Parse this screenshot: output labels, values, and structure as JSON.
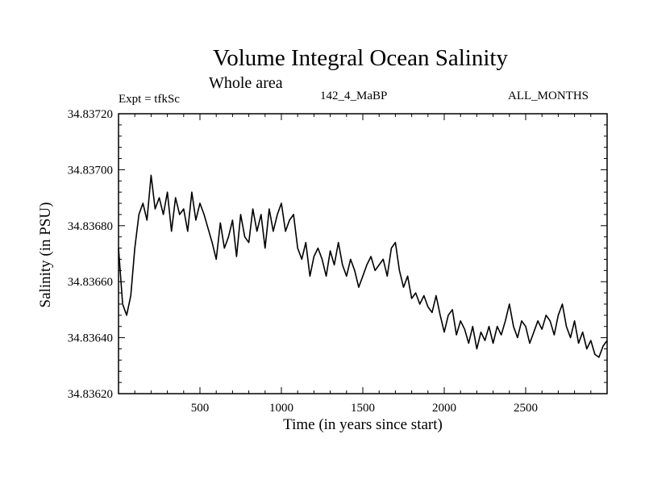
{
  "chart_data": {
    "type": "line",
    "title": "Volume Integral Ocean Salinity",
    "subtitle": "Whole area",
    "experiment": "Expt = tfkSc",
    "run_label": "142_4_MaBP",
    "months_label": "ALL_MONTHS",
    "xlabel": "Time (in years since start)",
    "ylabel": "Salinity (in PSU)",
    "xlim": [
      0,
      3000
    ],
    "ylim": [
      34.8362,
      34.8372
    ],
    "x_ticks": [
      500,
      1000,
      1500,
      2000,
      2500
    ],
    "y_ticks": [
      34.8362,
      34.8364,
      34.8366,
      34.8368,
      34.837,
      34.8372
    ],
    "x_tick_labels": [
      "500",
      "1000",
      "1500",
      "2000",
      "2500"
    ],
    "y_tick_labels": [
      "34.83620",
      "34.83640",
      "34.83660",
      "34.83680",
      "34.83700",
      "34.83720"
    ],
    "grid": false,
    "series": [
      {
        "name": "salinity",
        "x": [
          0,
          25,
          50,
          75,
          100,
          125,
          150,
          175,
          200,
          225,
          250,
          275,
          300,
          325,
          350,
          375,
          400,
          425,
          450,
          475,
          500,
          525,
          550,
          575,
          600,
          625,
          650,
          675,
          700,
          725,
          750,
          775,
          800,
          825,
          850,
          875,
          900,
          925,
          950,
          975,
          1000,
          1025,
          1050,
          1075,
          1100,
          1125,
          1150,
          1175,
          1200,
          1225,
          1250,
          1275,
          1300,
          1325,
          1350,
          1375,
          1400,
          1425,
          1450,
          1475,
          1500,
          1525,
          1550,
          1575,
          1600,
          1625,
          1650,
          1675,
          1700,
          1725,
          1750,
          1775,
          1800,
          1825,
          1850,
          1875,
          1900,
          1925,
          1950,
          1975,
          2000,
          2025,
          2050,
          2075,
          2100,
          2125,
          2150,
          2175,
          2200,
          2225,
          2250,
          2275,
          2300,
          2325,
          2350,
          2375,
          2400,
          2425,
          2450,
          2475,
          2500,
          2525,
          2550,
          2575,
          2600,
          2625,
          2650,
          2675,
          2700,
          2725,
          2750,
          2775,
          2800,
          2825,
          2850,
          2875,
          2900,
          2925,
          2950,
          2975,
          3000
        ],
        "values": [
          34.83672,
          34.83652,
          34.83648,
          34.83655,
          34.83672,
          34.83684,
          34.83688,
          34.83682,
          34.83698,
          34.83686,
          34.8369,
          34.83684,
          34.83692,
          34.83678,
          34.8369,
          34.83684,
          34.83686,
          34.83678,
          34.83692,
          34.83682,
          34.83688,
          34.83684,
          34.83679,
          34.83674,
          34.83668,
          34.83681,
          34.83672,
          34.83676,
          34.83682,
          34.83669,
          34.83684,
          34.83676,
          34.83674,
          34.83686,
          34.83678,
          34.83684,
          34.83672,
          34.83686,
          34.83678,
          34.83684,
          34.83688,
          34.83678,
          34.83682,
          34.83684,
          34.83672,
          34.83668,
          34.83674,
          34.83662,
          34.83669,
          34.83672,
          34.83668,
          34.83662,
          34.83671,
          34.83666,
          34.83674,
          34.83666,
          34.83662,
          34.83668,
          34.83664,
          34.83658,
          34.83662,
          34.83666,
          34.83669,
          34.83664,
          34.83666,
          34.83668,
          34.83662,
          34.83672,
          34.83674,
          34.83664,
          34.83658,
          34.83662,
          34.83654,
          34.83656,
          34.83652,
          34.83655,
          34.83651,
          34.83649,
          34.83655,
          34.83648,
          34.83642,
          34.83648,
          34.8365,
          34.83641,
          34.83646,
          34.83643,
          34.83638,
          34.83644,
          34.83636,
          34.83642,
          34.83639,
          34.83644,
          34.83638,
          34.83644,
          34.83641,
          34.83646,
          34.83652,
          34.83644,
          34.8364,
          34.83646,
          34.83644,
          34.83638,
          34.83642,
          34.83646,
          34.83643,
          34.83648,
          34.83646,
          34.83641,
          34.83648,
          34.83652,
          34.83644,
          34.8364,
          34.83646,
          34.83638,
          34.83642,
          34.83636,
          34.83639,
          34.83634,
          34.83633,
          34.83637,
          34.83639
        ]
      }
    ]
  }
}
